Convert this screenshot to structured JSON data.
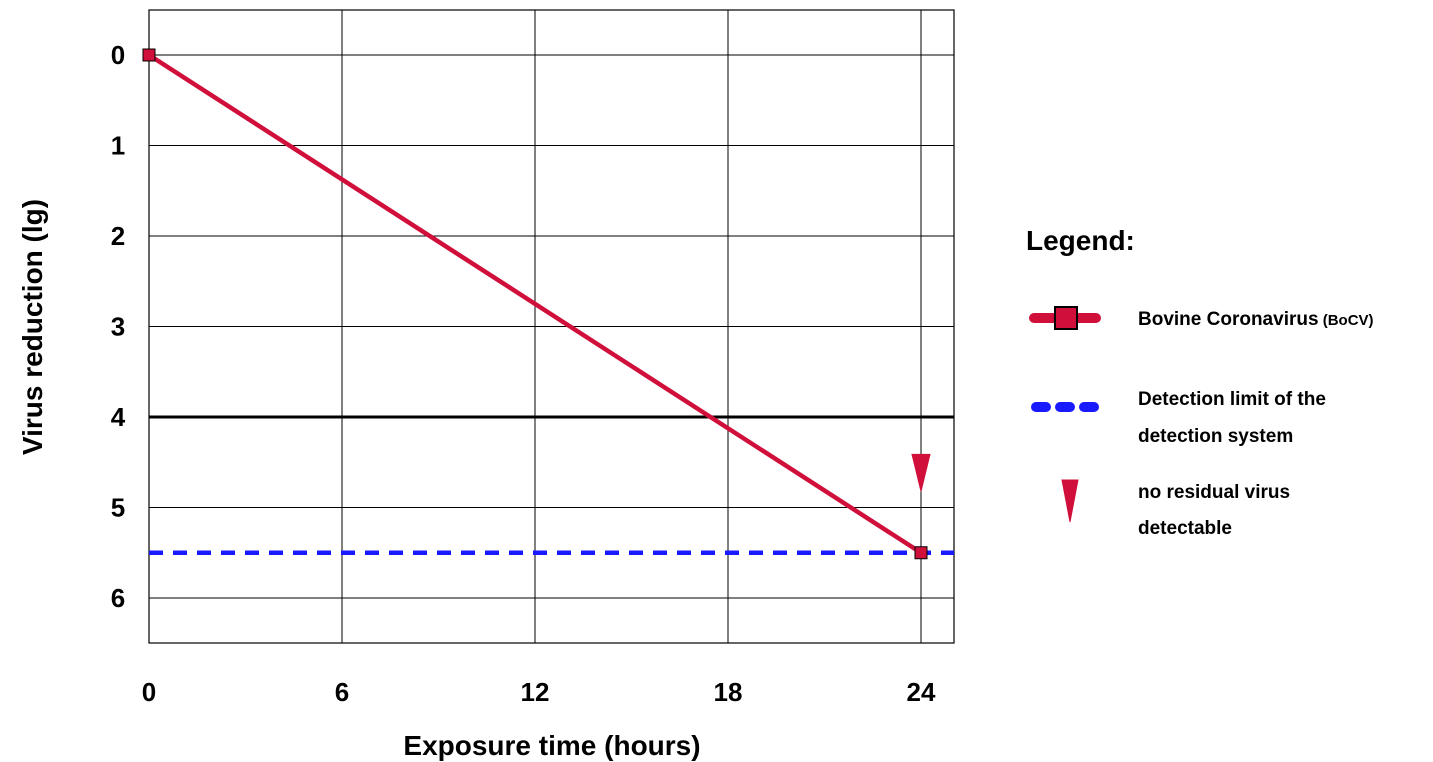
{
  "chart_data": {
    "type": "line",
    "xlabel": "Exposure time (hours)",
    "ylabel": "Virus reduction (lg)",
    "xlim": [
      0,
      25
    ],
    "ylim": [
      0,
      6.5
    ],
    "y_inverted": true,
    "x_ticks": [
      0,
      6,
      12,
      18,
      24
    ],
    "y_ticks": [
      0,
      1,
      2,
      3,
      4,
      5,
      6
    ],
    "grid": true,
    "reference_lines": [
      {
        "name": "Detection limit of the detection system",
        "y": 5.5,
        "style": "dashed",
        "color": "#1a1aff"
      },
      {
        "y": 4,
        "style": "solid",
        "color": "#000000",
        "emphasis": true
      }
    ],
    "series": [
      {
        "name": "Bovine Coronavirus (BoCV)",
        "color": "#d0103a",
        "x": [
          0,
          24
        ],
        "y": [
          0,
          5.5
        ]
      }
    ],
    "annotations": [
      {
        "type": "arrow-down",
        "x": 24,
        "y": 4.8,
        "color": "#d0103a",
        "meaning": "no residual virus detectable"
      }
    ],
    "legend": {
      "placement": "right",
      "title": "Legend:",
      "entries": [
        {
          "key": "series",
          "line1": "Bovine Coronavirus",
          "line1_suffix": " (BoCV)"
        },
        {
          "key": "limit",
          "line1": "Detection limit of the",
          "line2": "detection system"
        },
        {
          "key": "arrow",
          "line1": "no residual virus",
          "line2": "detectable"
        }
      ]
    }
  }
}
